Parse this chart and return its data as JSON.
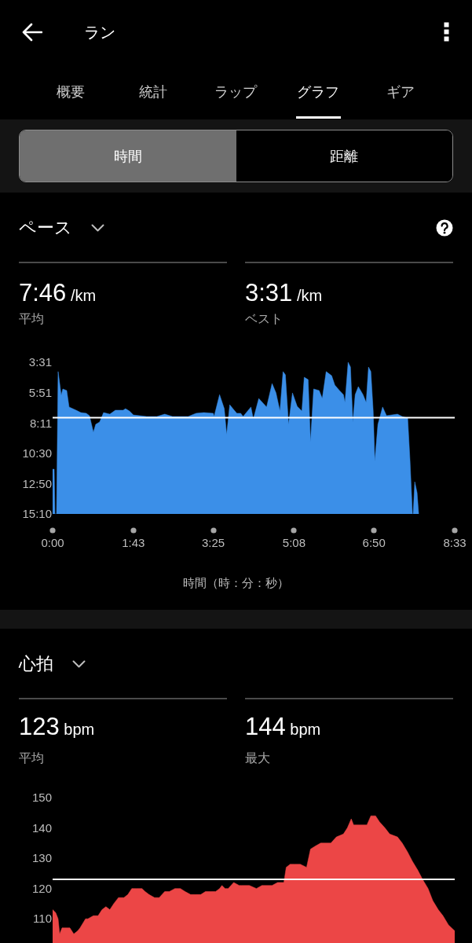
{
  "chart_data": [
    {
      "type": "other",
      "title": "ラン",
      "annotations": [
        "概要",
        "統計",
        "ラップ",
        "グラフ",
        "ギア",
        "時間",
        "距離"
      ]
    },
    {
      "type": "area",
      "title": "ペース",
      "annotations": [
        "7:46 /km",
        "平均",
        "3:31 /km",
        "ベスト"
      ],
      "xlabel": "時間（時：分：秒）",
      "x": [
        0,
        2,
        3,
        5,
        7,
        11,
        13,
        18,
        21,
        30,
        36,
        43,
        47,
        52,
        55,
        60,
        65,
        73,
        80,
        90,
        93,
        98,
        103,
        120,
        133,
        143,
        153,
        173,
        183,
        193,
        205,
        206,
        213,
        219,
        222,
        226,
        230,
        235,
        240,
        243,
        253,
        256,
        258,
        263,
        273,
        280,
        285,
        290,
        294,
        297,
        301,
        306,
        312,
        318,
        321,
        326,
        329,
        333,
        340,
        344,
        349,
        356,
        360,
        366,
        371,
        373,
        377,
        380,
        383,
        386,
        390,
        396,
        400,
        403,
        406,
        409,
        411,
        415,
        421,
        426,
        440,
        446,
        453,
        456,
        459,
        460,
        462,
        465,
        467
      ],
      "series": [
        {
          "color": "#3b8fe8",
          "values": [
            704,
            704,
            910,
            910,
            254,
            363,
            334,
            341,
            417,
            432,
            443,
            446,
            457,
            533,
            497,
            486,
            443,
            450,
            432,
            432,
            425,
            436,
            454,
            461,
            461,
            450,
            461,
            461,
            446,
            443,
            446,
            461,
            360,
            425,
            544,
            407,
            425,
            446,
            446,
            461,
            417,
            472,
            446,
            378,
            417,
            309,
            352,
            436,
            254,
            269,
            497,
            352,
            414,
            436,
            280,
            291,
            577,
            334,
            341,
            378,
            254,
            273,
            316,
            341,
            360,
            396,
            211,
            233,
            486,
            360,
            323,
            360,
            396,
            233,
            254,
            436,
            667,
            497,
            417,
            457,
            450,
            461,
            468,
            667,
            910,
            910,
            762,
            812,
            910
          ]
        }
      ],
      "xlim": [
        0,
        513
      ],
      "xticks": [
        {
          "value": 0,
          "label": "0:00"
        },
        {
          "value": 103,
          "label": "1:43"
        },
        {
          "value": 205,
          "label": "3:25"
        },
        {
          "value": 308,
          "label": "5:08"
        },
        {
          "value": 410,
          "label": "6:50"
        },
        {
          "value": 513,
          "label": "8:33"
        }
      ],
      "ylim": [
        910,
        211
      ],
      "yticks": [
        {
          "value": 211,
          "label": "3:31"
        },
        {
          "value": 351,
          "label": "5:51"
        },
        {
          "value": 491,
          "label": "8:11"
        },
        {
          "value": 630,
          "label": "10:30"
        },
        {
          "value": 770,
          "label": "12:50"
        },
        {
          "value": 910,
          "label": "15:10"
        }
      ],
      "ref_lines": [
        {
          "axis": "y",
          "value": 466,
          "color": "#ffffff"
        }
      ],
      "grid": false
    },
    {
      "type": "area",
      "title": "心拍",
      "annotations": [
        "123 bpm",
        "平均",
        "144 bpm",
        "最大"
      ],
      "x": [
        0,
        4,
        7,
        9,
        12,
        16,
        19,
        22,
        27,
        32,
        35,
        42,
        45,
        52,
        58,
        63,
        68,
        73,
        78,
        84,
        91,
        96,
        101,
        107,
        114,
        118,
        123,
        130,
        136,
        143,
        149,
        156,
        163,
        169,
        176,
        182,
        189,
        195,
        202,
        208,
        213,
        216,
        220,
        224,
        231,
        238,
        241,
        251,
        260,
        267,
        280,
        287,
        295,
        298,
        303,
        309,
        316,
        324,
        329,
        335,
        342,
        355,
        362,
        371,
        376,
        381,
        384,
        391,
        401,
        406,
        412,
        417,
        424,
        430,
        440,
        446,
        453,
        459,
        466,
        472,
        479,
        485,
        492,
        498,
        505,
        513
      ],
      "series": [
        {
          "color": "#ec4646",
          "values": [
            113,
            112,
            110,
            105,
            107,
            107,
            107,
            107,
            105,
            106,
            107,
            110,
            110,
            111,
            111,
            113,
            114,
            113,
            115,
            117,
            117,
            118,
            120,
            120,
            120,
            119,
            118,
            117,
            117,
            119,
            119,
            120,
            120,
            119,
            118,
            118,
            118,
            119,
            119,
            119,
            120,
            121,
            120,
            120,
            122,
            121,
            121,
            121,
            120,
            121,
            121,
            122,
            122,
            127,
            128,
            128,
            128,
            127,
            133,
            134,
            135,
            135,
            137,
            138,
            140,
            143,
            141,
            141,
            141,
            144,
            144,
            142,
            140,
            138,
            137,
            135,
            132,
            129,
            126,
            123,
            120,
            116,
            113,
            111,
            108,
            106
          ]
        }
      ],
      "xlim": [
        0,
        513
      ],
      "ylim": [
        102,
        150
      ],
      "yticks": [
        110,
        120,
        130,
        140,
        150
      ],
      "tick_labels": "y",
      "ref_lines": [
        {
          "axis": "y",
          "value": 123,
          "color": "#ffffff"
        }
      ],
      "grid": false
    }
  ]
}
